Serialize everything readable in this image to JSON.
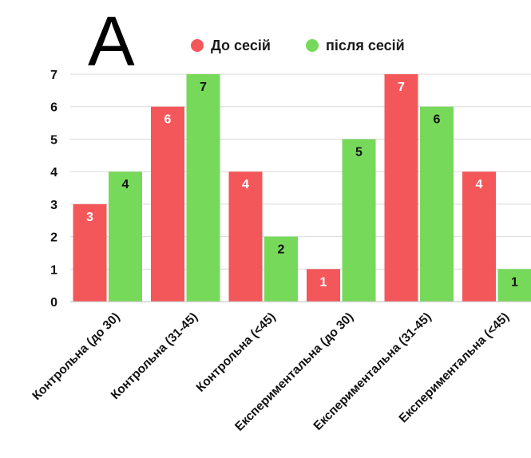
{
  "panel_letter": "A",
  "chart_data": {
    "type": "bar",
    "categories": [
      "Контрольна (до 30)",
      "Контрольна (31-45)",
      "Контрольна (<45)",
      "Експериментальна (до 30)",
      "Експериментальна (31-45)",
      "Експериментальна (<45)"
    ],
    "series": [
      {
        "name": "До сесій",
        "color": "#f4575a",
        "label_color": "#ffffff",
        "values": [
          3,
          6,
          4,
          1,
          7,
          4
        ]
      },
      {
        "name": "після сесій",
        "color": "#77d95a",
        "label_color": "#111111",
        "values": [
          4,
          7,
          2,
          5,
          6,
          1
        ]
      }
    ],
    "y_ticks": [
      "0",
      "1",
      "2",
      "3",
      "4",
      "5",
      "6",
      "7"
    ],
    "ylim": [
      0,
      7
    ],
    "xlabel": "",
    "ylabel": "",
    "title": "",
    "grid": true,
    "legend_position": "top"
  }
}
